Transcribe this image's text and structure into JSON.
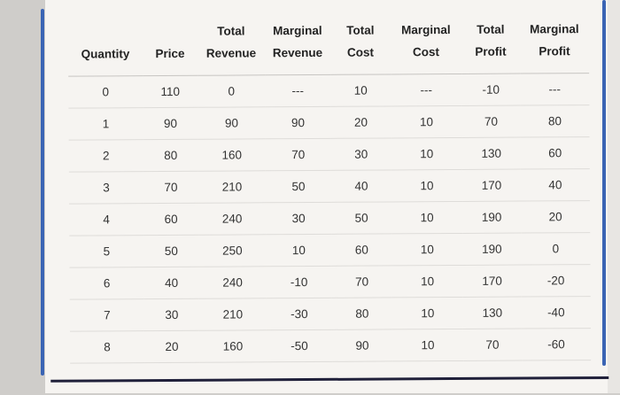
{
  "chart_data": {
    "type": "table",
    "title": "",
    "columns": [
      {
        "name": "Quantity",
        "lines": [
          "Quantity"
        ]
      },
      {
        "name": "Price",
        "lines": [
          "Price"
        ]
      },
      {
        "name": "Total Revenue",
        "lines": [
          "Total",
          "Revenue"
        ]
      },
      {
        "name": "Marginal Revenue",
        "lines": [
          "Marginal",
          "Revenue"
        ]
      },
      {
        "name": "Total Cost",
        "lines": [
          "Total",
          "Cost"
        ]
      },
      {
        "name": "Marginal Cost",
        "lines": [
          "Marginal",
          "Cost"
        ]
      },
      {
        "name": "Total Profit",
        "lines": [
          "Total",
          "Profit"
        ]
      },
      {
        "name": "Marginal Profit",
        "lines": [
          "Marginal",
          "Profit"
        ]
      }
    ],
    "rows": [
      [
        "0",
        "110",
        "0",
        "---",
        "10",
        "---",
        "-10",
        "---"
      ],
      [
        "1",
        "90",
        "90",
        "90",
        "20",
        "10",
        "70",
        "80"
      ],
      [
        "2",
        "80",
        "160",
        "70",
        "30",
        "10",
        "130",
        "60"
      ],
      [
        "3",
        "70",
        "210",
        "50",
        "40",
        "10",
        "170",
        "40"
      ],
      [
        "4",
        "60",
        "240",
        "30",
        "50",
        "10",
        "190",
        "20"
      ],
      [
        "5",
        "50",
        "250",
        "10",
        "60",
        "10",
        "190",
        "0"
      ],
      [
        "6",
        "40",
        "240",
        "-10",
        "70",
        "10",
        "170",
        "-20"
      ],
      [
        "7",
        "30",
        "210",
        "-30",
        "80",
        "10",
        "130",
        "-40"
      ],
      [
        "8",
        "20",
        "160",
        "-50",
        "90",
        "10",
        "70",
        "-60"
      ]
    ]
  },
  "colors": {
    "accent_line_blue": "#3a64b4",
    "bottom_rule_dark": "#20203a",
    "background_gray": "#cfcdca",
    "panel_offwhite": "#f6f4f1",
    "row_divider": "#dedcd9",
    "text": "#333333"
  }
}
